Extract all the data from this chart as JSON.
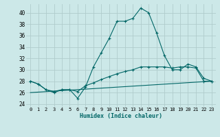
{
  "title": "",
  "xlabel": "Humidex (Indice chaleur)",
  "ylabel": "",
  "bg_color": "#cce8e8",
  "grid_color": "#b0cccc",
  "line_color": "#006666",
  "xlim": [
    -0.5,
    23.5
  ],
  "ylim": [
    23.5,
    41.5
  ],
  "yticks": [
    24,
    26,
    28,
    30,
    32,
    34,
    36,
    38,
    40
  ],
  "xticks": [
    0,
    1,
    2,
    3,
    4,
    5,
    6,
    7,
    8,
    9,
    10,
    11,
    12,
    13,
    14,
    15,
    16,
    17,
    18,
    19,
    20,
    21,
    22,
    23
  ],
  "xtick_labels": [
    "0",
    "1",
    "2",
    "3",
    "4",
    "5",
    "6",
    "7",
    "8",
    "9",
    "10",
    "11",
    "12",
    "13",
    "14",
    "15",
    "16",
    "17",
    "18",
    "19",
    "20",
    "21",
    "22",
    "23"
  ],
  "line1_x": [
    0,
    1,
    2,
    3,
    4,
    5,
    6,
    7,
    8,
    9,
    10,
    11,
    12,
    13,
    14,
    15,
    16,
    17,
    18,
    19,
    20,
    21,
    22,
    23
  ],
  "line1_y": [
    28.0,
    27.5,
    26.5,
    26.0,
    26.5,
    26.5,
    25.0,
    27.0,
    30.5,
    33.0,
    35.5,
    38.5,
    38.5,
    39.0,
    40.8,
    40.0,
    36.5,
    32.5,
    30.0,
    30.0,
    31.0,
    30.5,
    28.5,
    28.0
  ],
  "line2_x": [
    0,
    1,
    2,
    3,
    4,
    5,
    6,
    7,
    8,
    9,
    10,
    11,
    12,
    13,
    14,
    15,
    16,
    17,
    18,
    19,
    20,
    21,
    22,
    23
  ],
  "line2_y": [
    28.0,
    27.5,
    26.5,
    26.2,
    26.5,
    26.5,
    26.2,
    27.2,
    27.7,
    28.3,
    28.8,
    29.3,
    29.7,
    30.0,
    30.5,
    30.5,
    30.5,
    30.5,
    30.3,
    30.5,
    30.5,
    30.3,
    28.0,
    28.0
  ],
  "line3_x": [
    0,
    23
  ],
  "line3_y": [
    26.0,
    28.0
  ]
}
